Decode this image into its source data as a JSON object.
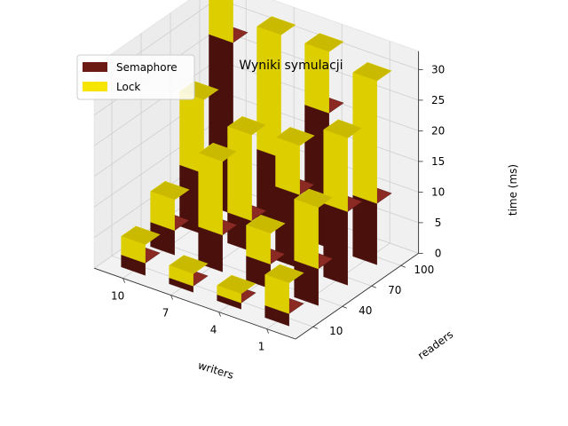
{
  "chart_data": {
    "type": "bar3d",
    "title": "Wyniki symulacji",
    "xlabel": "writers",
    "ylabel": "readers",
    "zlabel": "time (ms)",
    "x_ticks": [
      "10",
      "7",
      "4",
      "1"
    ],
    "y_ticks": [
      "10",
      "40",
      "70",
      "100"
    ],
    "z_ticks": [
      "0",
      "5",
      "10",
      "15",
      "20",
      "25",
      "30"
    ],
    "zlim": [
      0,
      33
    ],
    "legend_position": "top-left",
    "series": [
      {
        "name": "Semaphore",
        "color": "#6b1a14"
      },
      {
        "name": "Lock",
        "color": "#f5e500"
      }
    ],
    "bars": [
      {
        "writers": "10",
        "readers": "10",
        "semaphore": 2,
        "lock": 3
      },
      {
        "writers": "10",
        "readers": "40",
        "semaphore": 4,
        "lock": 5
      },
      {
        "writers": "10",
        "readers": "70",
        "semaphore": 10,
        "lock": 12
      },
      {
        "writers": "10",
        "readers": "100",
        "semaphore": 28,
        "lock": 10
      },
      {
        "writers": "7",
        "readers": "10",
        "semaphore": 1,
        "lock": 2
      },
      {
        "writers": "7",
        "readers": "40",
        "semaphore": 6,
        "lock": 12
      },
      {
        "writers": "7",
        "readers": "70",
        "semaphore": 5,
        "lock": 14
      },
      {
        "writers": "7",
        "readers": "100",
        "semaphore": 12,
        "lock": 20
      },
      {
        "writers": "4",
        "readers": "10",
        "semaphore": 1,
        "lock": 1.5
      },
      {
        "writers": "4",
        "readers": "40",
        "semaphore": 4,
        "lock": 5
      },
      {
        "writers": "4",
        "readers": "70",
        "semaphore": 12,
        "lock": 8
      },
      {
        "writers": "4",
        "readers": "100",
        "semaphore": 22,
        "lock": 10
      },
      {
        "writers": "1",
        "readers": "10",
        "semaphore": 2,
        "lock": 5
      },
      {
        "writers": "1",
        "readers": "40",
        "semaphore": 6,
        "lock": 10
      },
      {
        "writers": "1",
        "readers": "70",
        "semaphore": 12,
        "lock": 12
      },
      {
        "writers": "1",
        "readers": "100",
        "semaphore": 10,
        "lock": 20
      }
    ]
  }
}
